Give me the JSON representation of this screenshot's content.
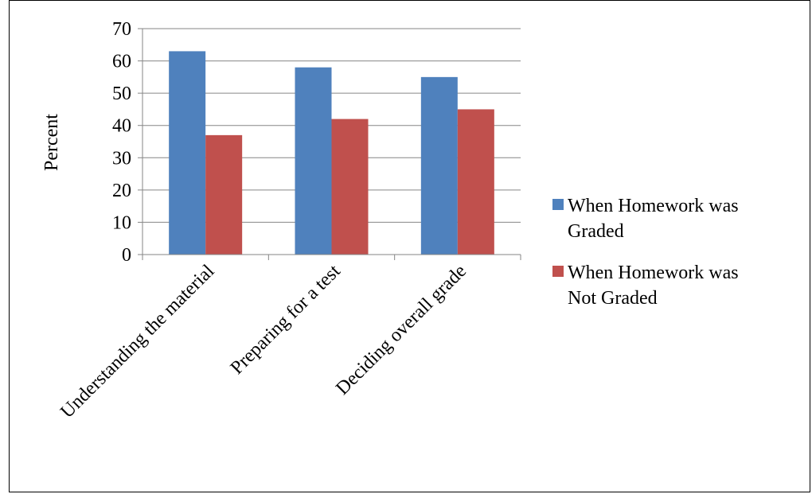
{
  "chart_data": {
    "type": "bar",
    "title": "",
    "xlabel": "",
    "ylabel": "Percent",
    "ylim": [
      0,
      70
    ],
    "ytick_step": 10,
    "grid": true,
    "legend_position": "right",
    "categories": [
      "Understanding the material",
      "Preparing for a test",
      "Deciding overall grade"
    ],
    "series": [
      {
        "name": "When Homework was Graded",
        "color": "#4F81BD",
        "values": [
          63,
          58,
          55
        ]
      },
      {
        "name": "When Homework was Not Graded",
        "color": "#C0504D",
        "values": [
          37,
          42,
          45
        ]
      }
    ],
    "legend": [
      {
        "lines": [
          "When Homework was",
          "Graded"
        ],
        "color": "#4F81BD"
      },
      {
        "lines": [
          "When Homework was",
          "Not Graded"
        ],
        "color": "#C0504D"
      }
    ]
  }
}
